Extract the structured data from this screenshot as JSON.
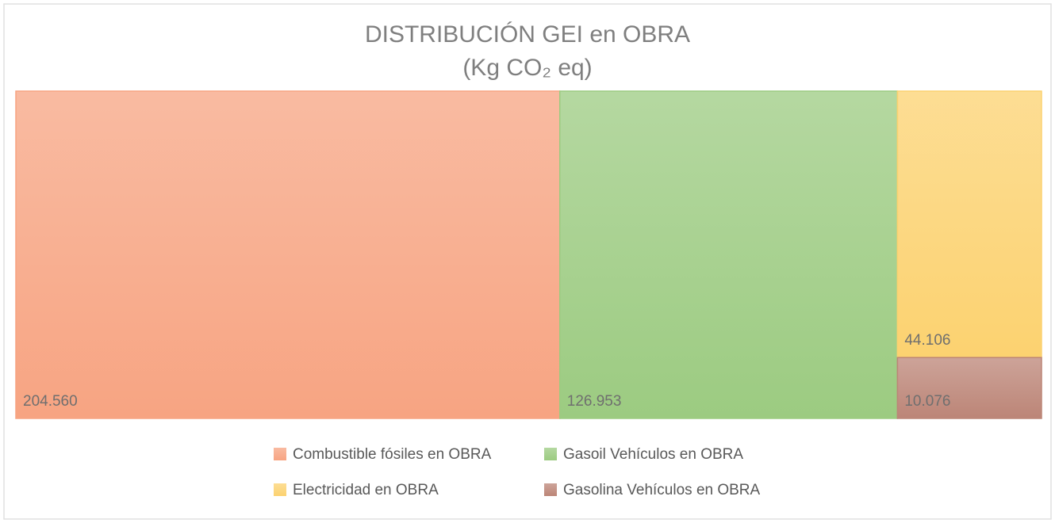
{
  "chart_data": {
    "type": "treemap",
    "title": "DISTRIBUCIÓN  GEI en OBRA",
    "subtitle": "(Kg CO₂ eq)",
    "categories": [
      "Combustible fósiles en OBRA",
      "Gasoil Vehículos en OBRA",
      "Electricidad en OBRA",
      "Gasolina Vehículos en OBRA"
    ],
    "values": [
      204560,
      126953,
      44106,
      10076
    ],
    "value_labels": [
      "204.560",
      "126.953",
      "44.106",
      "10.076"
    ],
    "colors": [
      "#f7a482",
      "#9ccb81",
      "#fcd270",
      "#bc8577"
    ]
  }
}
